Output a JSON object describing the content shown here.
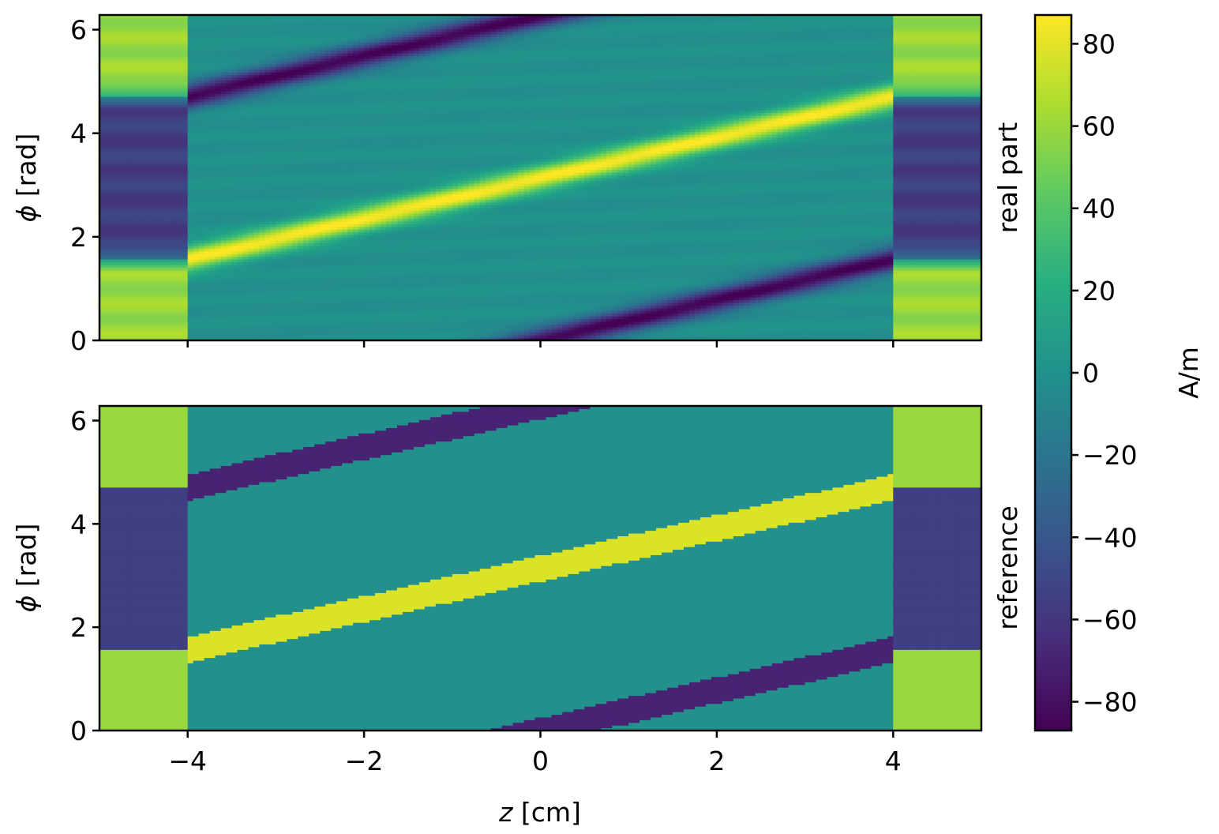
{
  "figure": {
    "xlabel_var": "z",
    "xlabel_unit": " [cm]"
  },
  "colorbar": {
    "label": "A/m",
    "vmin": -87,
    "vmax": 87,
    "ticks": [
      80,
      60,
      40,
      20,
      0,
      -20,
      -40,
      -60,
      -80
    ],
    "tick_labels": [
      "80",
      "60",
      "40",
      "20",
      "0",
      "−20",
      "−40",
      "−60",
      "−80"
    ],
    "colormap": "viridis"
  },
  "chart_data": [
    {
      "type": "heatmap",
      "panel": "top",
      "title": "real part",
      "xlabel": "",
      "ylabel_var": "ϕ",
      "ylabel_unit": " [rad]",
      "xlim": [
        -5,
        5
      ],
      "ylim": [
        0,
        6.283
      ],
      "xticks": [
        -4,
        -2,
        0,
        2,
        4
      ],
      "xtick_labels": [],
      "yticks": [
        0,
        2,
        4,
        6
      ],
      "ytick_labels": [
        "0",
        "2",
        "4",
        "6"
      ],
      "winding_region_z": [
        -4,
        4
      ],
      "helix_centerline": {
        "z": [
          -4,
          4
        ],
        "phi": [
          1.571,
          4.712
        ]
      },
      "band_values": {
        "positive_peak": 87,
        "negative_peak": -87,
        "background": 0
      },
      "end_values": {
        "phi_0_to_1.57": 60,
        "phi_1.57_to_4.71": -55,
        "phi_4.71_to_6.28": 60
      },
      "style": "smooth"
    },
    {
      "type": "heatmap",
      "panel": "bottom",
      "title": "reference",
      "xlabel": "z [cm]",
      "ylabel_var": "ϕ",
      "ylabel_unit": " [rad]",
      "xlim": [
        -5,
        5
      ],
      "ylim": [
        0,
        6.283
      ],
      "xticks": [
        -4,
        -2,
        0,
        2,
        4
      ],
      "xtick_labels": [
        "−4",
        "−2",
        "0",
        "2",
        "4"
      ],
      "yticks": [
        0,
        2,
        4,
        6
      ],
      "ytick_labels": [
        "0",
        "2",
        "4",
        "6"
      ],
      "winding_region_z": [
        -4,
        4
      ],
      "helix_centerline": {
        "z": [
          -4,
          4
        ],
        "phi": [
          1.571,
          4.712
        ]
      },
      "band_values": {
        "positive_peak": 78,
        "negative_peak": -70,
        "background": 0
      },
      "band_halfwidth_rad": 0.25,
      "end_values": {
        "phi_0_to_1.57": 60,
        "phi_1.57_to_4.71": -55,
        "phi_4.71_to_6.28": 60
      },
      "style": "piecewise"
    }
  ]
}
